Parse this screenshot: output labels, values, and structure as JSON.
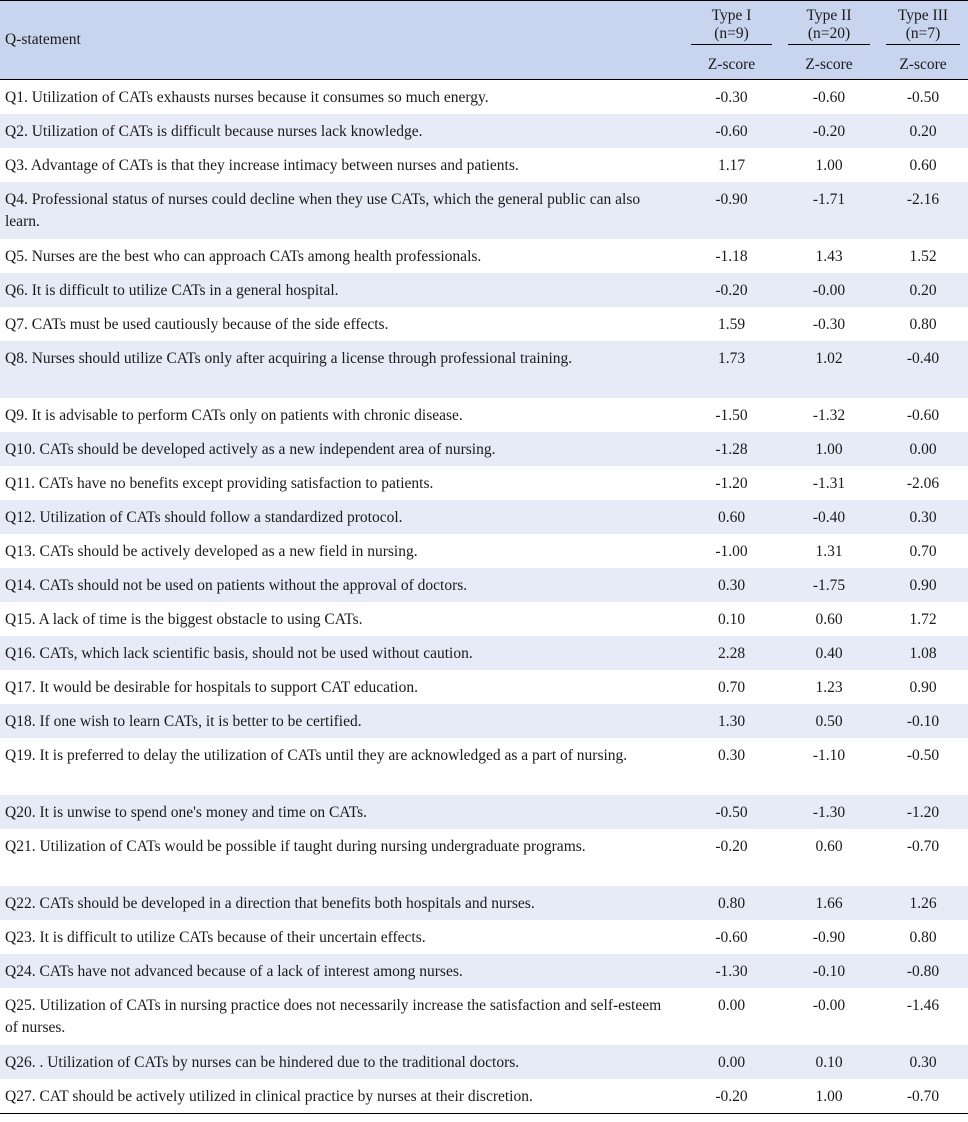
{
  "header": {
    "statement": "Q-statement",
    "types": [
      {
        "name": "Type I",
        "n": "(n=9)",
        "score": "Z-score"
      },
      {
        "name": "Type II",
        "n": "(n=20)",
        "score": "Z-score"
      },
      {
        "name": "Type III",
        "n": "(n=7)",
        "score": "Z-score"
      }
    ]
  },
  "rows": [
    {
      "text": "Q1. Utilization of CATs exhausts nurses because it consumes so much energy.",
      "v1": "-0.30",
      "v2": "-0.60",
      "v3": "-0.50"
    },
    {
      "text": "Q2. Utilization of CATs is difficult because nurses lack knowledge.",
      "v1": "-0.60",
      "v2": "-0.20",
      "v3": "0.20"
    },
    {
      "text": "Q3. Advantage of CATs is that they increase intimacy between nurses and patients.",
      "v1": "1.17",
      "v2": "1.00",
      "v3": "0.60"
    },
    {
      "text": "Q4. Professional status of nurses could decline when they use CATs, which the general public can also learn.",
      "v1": "-0.90",
      "v2": "-1.71",
      "v3": "-2.16"
    },
    {
      "text": "Q5. Nurses are the best who can approach CATs among health professionals.",
      "v1": "-1.18",
      "v2": "1.43",
      "v3": "1.52"
    },
    {
      "text": "Q6. It is difficult to utilize CATs in a general hospital.",
      "v1": "-0.20",
      "v2": "-0.00",
      "v3": "0.20"
    },
    {
      "text": "Q7. CATs must be used cautiously because of the side effects.",
      "v1": "1.59",
      "v2": "-0.30",
      "v3": "0.80"
    },
    {
      "text": "Q8. Nurses should utilize CATs only after acquiring a license through professional training.",
      "v1": "1.73",
      "v2": "1.02",
      "v3": "-0.40"
    },
    {
      "text": "Q9. It is advisable to perform CATs only on patients with chronic disease.",
      "v1": "-1.50",
      "v2": "-1.32",
      "v3": "-0.60"
    },
    {
      "text": "Q10. CATs should be developed actively as a new independent area of nursing.",
      "v1": "-1.28",
      "v2": "1.00",
      "v3": "0.00"
    },
    {
      "text": "Q11. CATs have no benefits except providing satisfaction to patients.",
      "v1": "-1.20",
      "v2": "-1.31",
      "v3": "-2.06"
    },
    {
      "text": "Q12. Utilization of CATs should follow a standardized protocol.",
      "v1": "0.60",
      "v2": "-0.40",
      "v3": "0.30"
    },
    {
      "text": "Q13. CATs should be actively developed as a new field in nursing.",
      "v1": "-1.00",
      "v2": "1.31",
      "v3": "0.70"
    },
    {
      "text": "Q14. CATs should not be used on patients without the approval of doctors.",
      "v1": "0.30",
      "v2": "-1.75",
      "v3": "0.90"
    },
    {
      "text": "Q15. A lack of time is the biggest obstacle to using CATs.",
      "v1": "0.10",
      "v2": "0.60",
      "v3": "1.72"
    },
    {
      "text": "Q16. CATs, which lack scientific basis, should not be used without caution.",
      "v1": "2.28",
      "v2": "0.40",
      "v3": "1.08"
    },
    {
      "text": "Q17. It would be desirable for hospitals to support CAT education.",
      "v1": "0.70",
      "v2": "1.23",
      "v3": "0.90"
    },
    {
      "text": "Q18. If one wish to learn CATs, it is better to be certified.",
      "v1": "1.30",
      "v2": "0.50",
      "v3": "-0.10"
    },
    {
      "text": "Q19. It is preferred to delay the utilization of CATs until they are acknowledged as a part of nursing.",
      "v1": "0.30",
      "v2": "-1.10",
      "v3": "-0.50"
    },
    {
      "text": "Q20. It is unwise to spend one's money and time on CATs.",
      "v1": "-0.50",
      "v2": "-1.30",
      "v3": "-1.20"
    },
    {
      "text": "Q21. Utilization of CATs would be possible if taught during nursing undergraduate programs.",
      "v1": "-0.20",
      "v2": "0.60",
      "v3": "-0.70"
    },
    {
      "text": "Q22. CATs should be developed in a direction that benefits both hospitals and nurses.",
      "v1": "0.80",
      "v2": "1.66",
      "v3": "1.26"
    },
    {
      "text": "Q23. It is difficult to utilize CATs because of their uncertain effects.",
      "v1": "-0.60",
      "v2": "-0.90",
      "v3": "0.80"
    },
    {
      "text": "Q24. CATs have not advanced because of a lack of interest among nurses.",
      "v1": "-1.30",
      "v2": "-0.10",
      "v3": "-0.80"
    },
    {
      "text": "Q25. Utilization of CATs in nursing practice does not necessarily increase the satisfaction and self-esteem of nurses.",
      "v1": "0.00",
      "v2": "-0.00",
      "v3": "-1.46"
    },
    {
      "text": "Q26. . Utilization of CATs by nurses can be hindered due to the traditional doctors.",
      "v1": "0.00",
      "v2": "0.10",
      "v3": "0.30"
    },
    {
      "text": "Q27. CAT should be actively utilized in clinical practice by nurses at their discretion.",
      "v1": "-0.20",
      "v2": "1.00",
      "v3": "-0.70"
    }
  ]
}
